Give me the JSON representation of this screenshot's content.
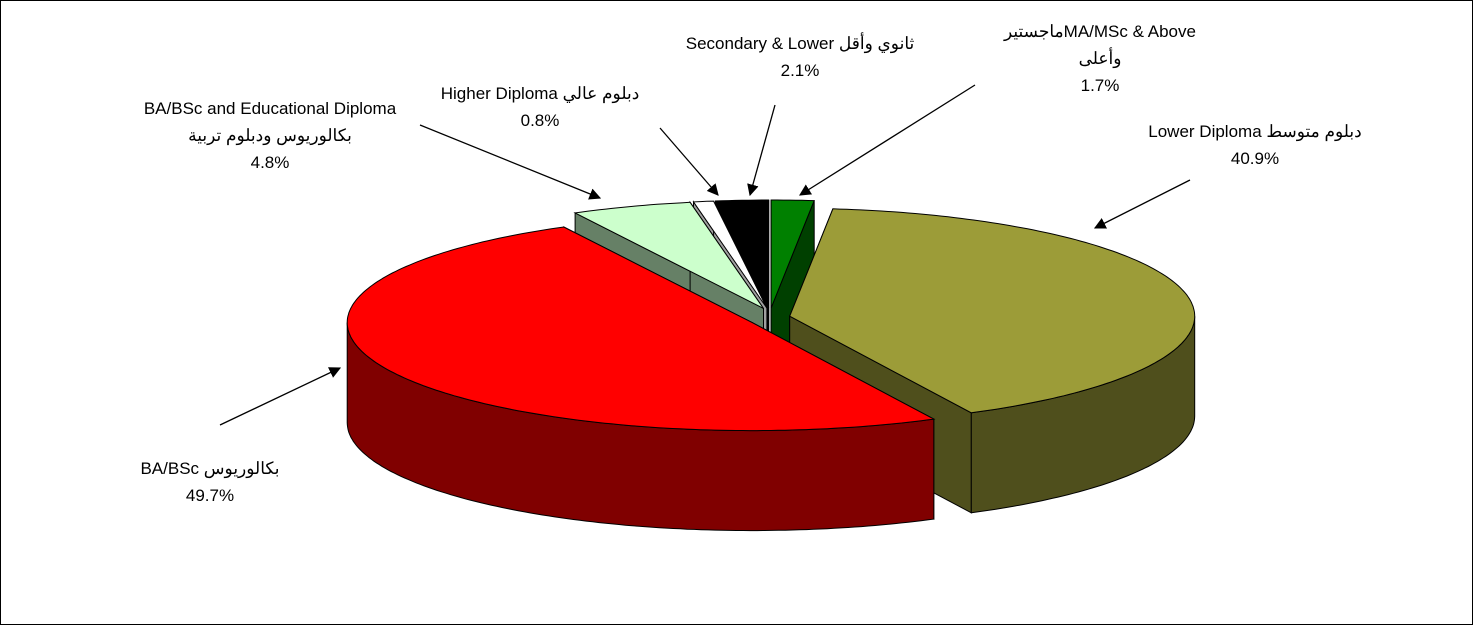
{
  "chart_data": {
    "type": "pie3d",
    "categories": [
      "ماجستيرMA/MSc & Above وأعلى",
      "Lower Diploma  دبلوم متوسط",
      "BA/BSc  بكالوريوس",
      "BA/BSc and Educational Diploma  بكالوريوس ودبلوم تربية",
      "Higher Diploma دبلوم عالي",
      "Secondary & Lower ثانوي وأقل"
    ],
    "values": [
      1.7,
      40.9,
      49.7,
      4.8,
      0.8,
      2.1
    ],
    "value_labels": [
      "1.7%",
      "40.9%",
      "49.7%",
      "4.8%",
      "0.8%",
      "2.1%"
    ],
    "colors": [
      "#008000",
      "#9c9c38",
      "#ff0000",
      "#ccffcc",
      "#ffffff",
      "#000000"
    ],
    "side_colors": [
      "#004000",
      "#4f4f1c",
      "#800000",
      "#668066",
      "#a0a0a0",
      "#000000"
    ]
  }
}
